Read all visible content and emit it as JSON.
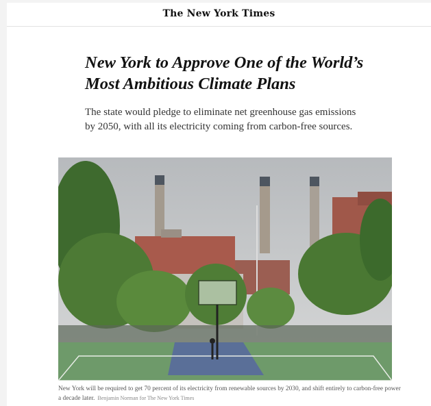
{
  "masthead": "The New York Times",
  "article": {
    "headline": "New York to Approve One of the World’s Most Ambitious Climate Plans",
    "summary": "The state would pledge to eliminate net greenhouse gas emissions by 2050, with all its electricity coming from carbon-free sources.",
    "caption": "New York will be required to get 70 percent of its electricity from renewable sources by 2030, and shift entirely to carbon-free power a decade later.",
    "credit": "Benjamin Norman for The New York Times"
  }
}
